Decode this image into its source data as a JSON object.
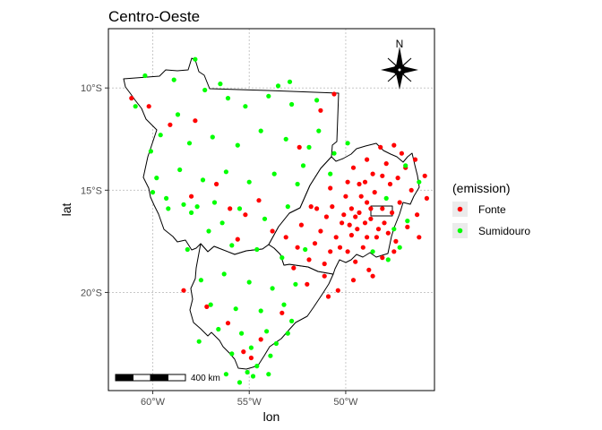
{
  "map": {
    "title": "Centro-Oeste",
    "x_axis_label": "lon",
    "y_axis_label": "lat",
    "x_ticks": [
      {
        "lon": -60,
        "label": "60°W"
      },
      {
        "lon": -55,
        "label": "55°W"
      },
      {
        "lon": -50,
        "label": "50°W"
      }
    ],
    "y_ticks": [
      {
        "lat": -10,
        "label": "10°S"
      },
      {
        "lat": -15,
        "label": "15°S"
      },
      {
        "lat": -20,
        "label": "20°S"
      }
    ],
    "xlim": [
      -62.3,
      -45.4
    ],
    "ylim": [
      -24.8,
      -7.1
    ],
    "grid": true,
    "north_arrow_label": "N",
    "scale_bar_label": "400 km",
    "legend": {
      "title": "(emission)",
      "position": "right",
      "items": [
        {
          "label": "Fonte",
          "color": "#ff0000"
        },
        {
          "label": "Sumidouro",
          "color": "#00ff00"
        }
      ]
    }
  },
  "chart_data": {
    "type": "scatter",
    "title": "Centro-Oeste",
    "xlabel": "lon",
    "ylabel": "lat",
    "xlim": [
      -62.3,
      -45.4
    ],
    "ylim": [
      -24.8,
      -7.1
    ],
    "grid": true,
    "legend_position": "right",
    "series": [
      {
        "name": "Fonte",
        "color": "#ff0000",
        "points": [
          [
            -61.1,
            -10.5
          ],
          [
            -60.2,
            -10.9
          ],
          [
            -59.1,
            -11.8
          ],
          [
            -57.8,
            -11.6
          ],
          [
            -58.0,
            -15.3
          ],
          [
            -56.7,
            -14.7
          ],
          [
            -56.0,
            -15.9
          ],
          [
            -55.2,
            -16.2
          ],
          [
            -54.5,
            -15.5
          ],
          [
            -53.8,
            -17.0
          ],
          [
            -53.1,
            -17.3
          ],
          [
            -52.5,
            -17.8
          ],
          [
            -58.4,
            -19.9
          ],
          [
            -57.2,
            -20.7
          ],
          [
            -56.1,
            -21.5
          ],
          [
            -55.3,
            -22.9
          ],
          [
            -54.9,
            -23.2
          ],
          [
            -54.4,
            -22.3
          ],
          [
            -53.3,
            -21.0
          ],
          [
            -52.7,
            -18.8
          ],
          [
            -51.8,
            -15.8
          ],
          [
            -51.3,
            -17.0
          ],
          [
            -51.9,
            -18.4
          ],
          [
            -51.1,
            -19.2
          ],
          [
            -50.4,
            -19.9
          ],
          [
            -49.6,
            -19.4
          ],
          [
            -48.8,
            -18.9
          ],
          [
            -48.1,
            -18.3
          ],
          [
            -47.4,
            -17.5
          ],
          [
            -46.8,
            -16.8
          ],
          [
            -46.3,
            -16.2
          ],
          [
            -45.8,
            -15.4
          ],
          [
            -45.9,
            -14.3
          ],
          [
            -46.4,
            -13.5
          ],
          [
            -47.1,
            -13.2
          ],
          [
            -47.9,
            -13.7
          ],
          [
            -48.6,
            -14.2
          ],
          [
            -49.3,
            -14.7
          ],
          [
            -50.0,
            -15.3
          ],
          [
            -50.7,
            -15.8
          ],
          [
            -50.2,
            -16.6
          ],
          [
            -49.4,
            -16.9
          ],
          [
            -48.7,
            -16.4
          ],
          [
            -48.1,
            -15.9
          ],
          [
            -47.6,
            -16.1
          ],
          [
            -47.2,
            -15.6
          ],
          [
            -48.9,
            -15.6
          ],
          [
            -49.7,
            -15.9
          ],
          [
            -50.5,
            -17.3
          ],
          [
            -49.9,
            -18.0
          ],
          [
            -49.1,
            -17.8
          ],
          [
            -48.4,
            -17.3
          ],
          [
            -47.8,
            -17.1
          ],
          [
            -49.5,
            -16.3
          ],
          [
            -49.0,
            -16.6
          ],
          [
            -48.3,
            -16.9
          ],
          [
            -49.8,
            -16.7
          ],
          [
            -50.3,
            -17.8
          ],
          [
            -51.5,
            -15.9
          ],
          [
            -50.8,
            -14.9
          ],
          [
            -49.6,
            -13.9
          ],
          [
            -48.9,
            -13.5
          ],
          [
            -48.2,
            -12.9
          ],
          [
            -47.5,
            -12.8
          ],
          [
            -46.9,
            -13.9
          ],
          [
            -47.7,
            -14.7
          ],
          [
            -48.5,
            -15.1
          ],
          [
            -49.2,
            -15.3
          ],
          [
            -48.7,
            -15.9
          ],
          [
            -49.3,
            -16.1
          ],
          [
            -48.0,
            -16.6
          ],
          [
            -50.1,
            -16.2
          ],
          [
            -49.7,
            -17.2
          ],
          [
            -48.9,
            -17.3
          ],
          [
            -50.8,
            -18.0
          ],
          [
            -51.6,
            -17.6
          ],
          [
            -52.3,
            -16.7
          ],
          [
            -51.0,
            -16.3
          ],
          [
            -49.9,
            -14.6
          ],
          [
            -47.3,
            -14.4
          ],
          [
            -46.6,
            -15.0
          ],
          [
            -46.2,
            -17.3
          ],
          [
            -47.5,
            -18.0
          ],
          [
            -48.6,
            -19.2
          ],
          [
            -50.9,
            -20.2
          ],
          [
            -49.0,
            -14.6
          ],
          [
            -48.1,
            -14.3
          ],
          [
            -49.5,
            -18.5
          ],
          [
            -51.1,
            -18.6
          ],
          [
            -52.0,
            -19.6
          ],
          [
            -50.6,
            -10.3
          ],
          [
            -51.3,
            -11.1
          ],
          [
            -52.4,
            -12.9
          ],
          [
            -55.6,
            -17.4
          ]
        ]
      },
      {
        "name": "Sumidouro",
        "color": "#00ff00",
        "points": [
          [
            -57.8,
            -8.6
          ],
          [
            -60.4,
            -9.4
          ],
          [
            -58.9,
            -9.6
          ],
          [
            -57.3,
            -10.1
          ],
          [
            -56.1,
            -10.5
          ],
          [
            -55.2,
            -10.9
          ],
          [
            -54.0,
            -10.4
          ],
          [
            -52.8,
            -10.8
          ],
          [
            -51.5,
            -10.6
          ],
          [
            -59.6,
            -12.3
          ],
          [
            -58.1,
            -12.7
          ],
          [
            -56.9,
            -12.4
          ],
          [
            -55.6,
            -12.8
          ],
          [
            -54.4,
            -12.1
          ],
          [
            -53.1,
            -12.5
          ],
          [
            -51.9,
            -12.9
          ],
          [
            -59.8,
            -14.4
          ],
          [
            -58.6,
            -14.0
          ],
          [
            -57.4,
            -14.5
          ],
          [
            -56.2,
            -14.1
          ],
          [
            -55.0,
            -14.6
          ],
          [
            -53.7,
            -14.2
          ],
          [
            -52.5,
            -14.7
          ],
          [
            -59.2,
            -15.9
          ],
          [
            -58.0,
            -16.1
          ],
          [
            -56.8,
            -15.6
          ],
          [
            -55.5,
            -15.9
          ],
          [
            -54.2,
            -16.4
          ],
          [
            -53.0,
            -15.8
          ],
          [
            -60.0,
            -15.1
          ],
          [
            -57.1,
            -17.0
          ],
          [
            -55.9,
            -17.7
          ],
          [
            -54.6,
            -17.9
          ],
          [
            -53.3,
            -18.3
          ],
          [
            -52.6,
            -19.6
          ],
          [
            -57.5,
            -19.4
          ],
          [
            -56.3,
            -19.1
          ],
          [
            -55.0,
            -19.5
          ],
          [
            -53.8,
            -19.8
          ],
          [
            -57.0,
            -20.6
          ],
          [
            -55.7,
            -20.8
          ],
          [
            -54.4,
            -20.9
          ],
          [
            -53.2,
            -20.6
          ],
          [
            -56.6,
            -21.8
          ],
          [
            -55.4,
            -22.0
          ],
          [
            -54.1,
            -21.9
          ],
          [
            -55.9,
            -23.0
          ],
          [
            -54.6,
            -23.6
          ],
          [
            -55.1,
            -23.9
          ],
          [
            -53.9,
            -23.1
          ],
          [
            -54.8,
            -24.1
          ],
          [
            -57.6,
            -22.4
          ],
          [
            -58.2,
            -17.9
          ],
          [
            -60.1,
            -13.1
          ],
          [
            -60.9,
            -10.9
          ],
          [
            -56.5,
            -9.8
          ],
          [
            -53.5,
            -9.9
          ],
          [
            -50.6,
            -13.2
          ],
          [
            -49.9,
            -12.7
          ],
          [
            -46.9,
            -13.8
          ],
          [
            -46.2,
            -14.6
          ],
          [
            -46.8,
            -16.5
          ],
          [
            -47.5,
            -16.9
          ],
          [
            -47.9,
            -15.4
          ],
          [
            -50.8,
            -14.2
          ],
          [
            -48.6,
            -18.0
          ],
          [
            -47.8,
            -18.4
          ],
          [
            -47.2,
            -17.8
          ],
          [
            -52.2,
            -13.8
          ],
          [
            -51.4,
            -12.1
          ],
          [
            -52.9,
            -9.7
          ],
          [
            -58.7,
            -11.3
          ],
          [
            -59.3,
            -15.4
          ],
          [
            -58.4,
            -15.7
          ],
          [
            -57.7,
            -15.8
          ],
          [
            -56.4,
            -16.6
          ],
          [
            -52.1,
            -17.9
          ],
          [
            -52.8,
            -21.4
          ],
          [
            -53.6,
            -22.5
          ],
          [
            -54.0,
            -24.0
          ],
          [
            -56.2,
            -24.0
          ],
          [
            -55.5,
            -24.4
          ],
          [
            -54.9,
            -22.7
          ],
          [
            -53.0,
            -22.0
          ]
        ]
      }
    ]
  }
}
